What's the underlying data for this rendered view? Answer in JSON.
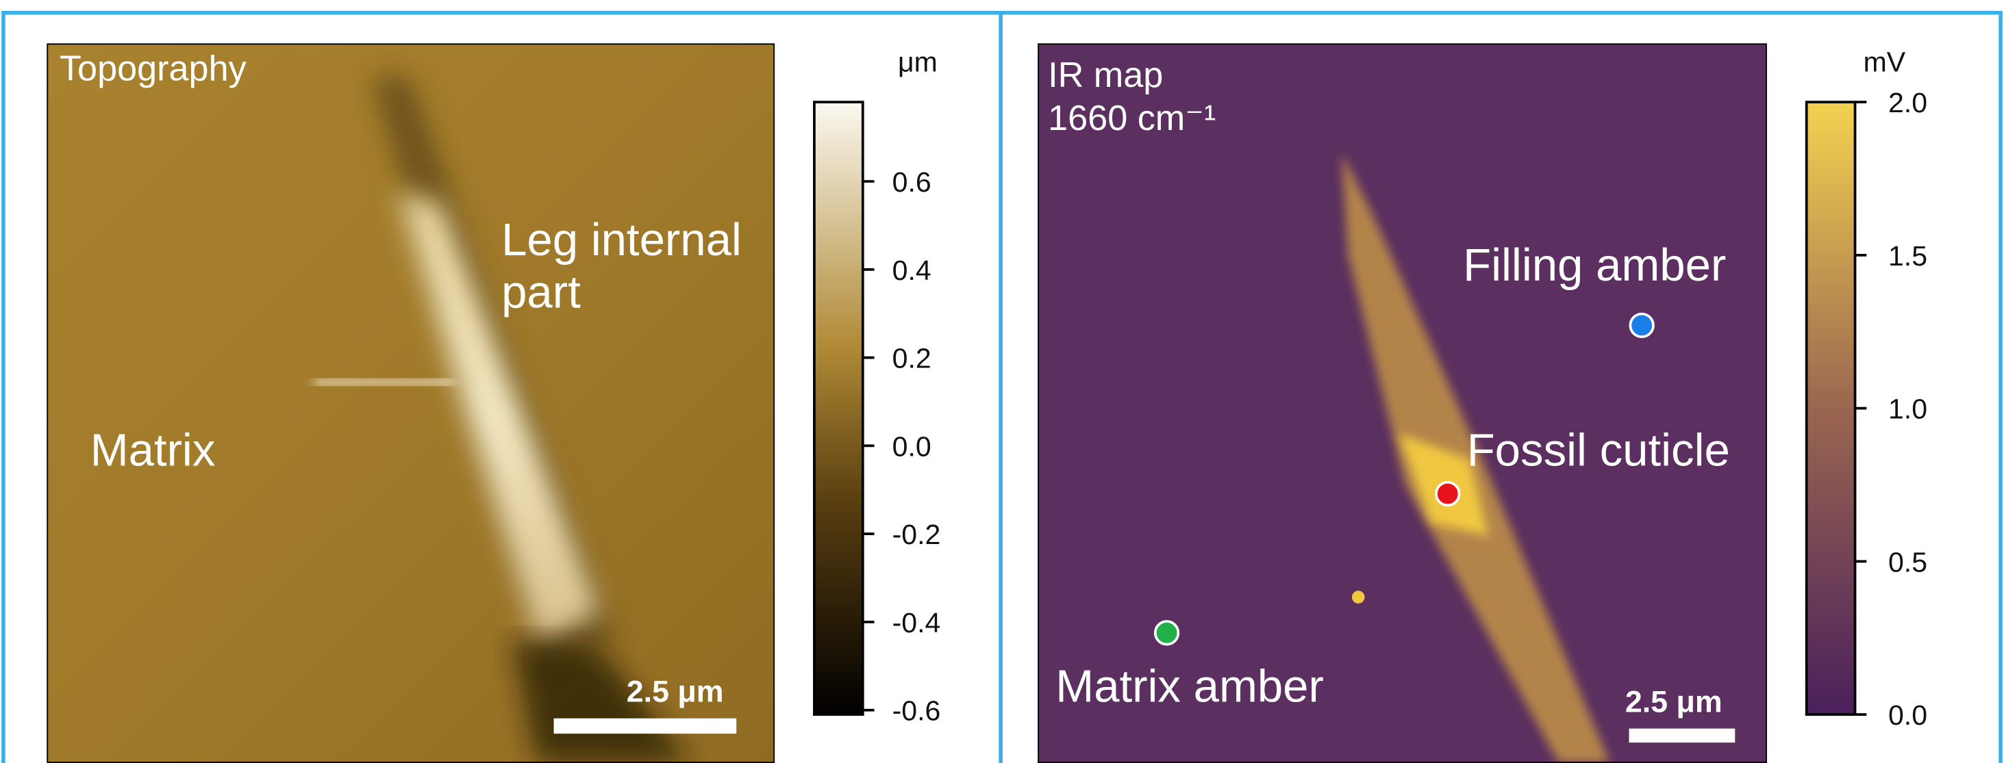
{
  "panels": [
    {
      "title": "Topography",
      "annotations": [
        {
          "lines": [
            "Leg internal",
            "part"
          ]
        },
        {
          "lines": [
            "Matrix"
          ]
        }
      ],
      "scale_bar": "2.5 μm",
      "colorbar": {
        "unit": "μm",
        "lim": [
          -0.61,
          0.78
        ],
        "ticks": [
          -0.6,
          -0.4,
          -0.2,
          {
            "value": 0,
            "label": "0.0"
          },
          0.2,
          0.4,
          0.6
        ]
      }
    },
    {
      "title": "IR map",
      "subtitle": "1660 cm⁻¹",
      "annotations": [
        {
          "lines": [
            "Filling amber"
          ]
        },
        {
          "lines": [
            "Fossil cuticle"
          ]
        },
        {
          "lines": [
            "Matrix amber"
          ]
        }
      ],
      "scale_bar": "2.5 μm",
      "colorbar": {
        "unit": "mV",
        "lim": [
          0,
          2
        ],
        "ticks": [
          {
            "value": 0,
            "label": "0.0"
          },
          0.5,
          {
            "value": 1,
            "label": "1.0"
          },
          1.5,
          {
            "value": 2,
            "label": "2.0"
          }
        ]
      }
    }
  ]
}
